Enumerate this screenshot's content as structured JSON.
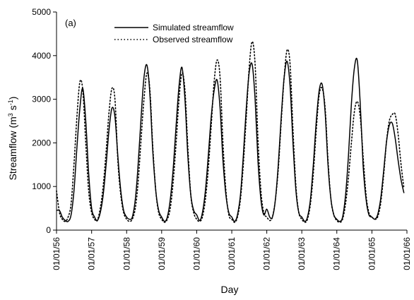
{
  "chart_data": {
    "type": "line",
    "panel_label": "(a)",
    "xlabel": "Day",
    "ylabel_main": "Streamflow (m",
    "ylabel_sup1": "3",
    "ylabel_mid": " s",
    "ylabel_sup2": "-1",
    "ylabel_end": ")",
    "xlim": [
      "1956-01-01",
      "1966-01-01"
    ],
    "ylim": [
      0,
      5000
    ],
    "yticks": [
      0,
      1000,
      2000,
      3000,
      4000,
      5000
    ],
    "xticks": [
      {
        "date": "1956-01-01",
        "label": "01/01/56"
      },
      {
        "date": "1957-01-01",
        "label": "01/01/57"
      },
      {
        "date": "1958-01-01",
        "label": "01/01/58"
      },
      {
        "date": "1959-01-01",
        "label": "01/01/59"
      },
      {
        "date": "1960-01-01",
        "label": "01/01/60"
      },
      {
        "date": "1961-01-01",
        "label": "01/01/61"
      },
      {
        "date": "1962-01-01",
        "label": "01/01/62"
      },
      {
        "date": "1963-01-01",
        "label": "01/01/63"
      },
      {
        "date": "1964-01-01",
        "label": "01/01/64"
      },
      {
        "date": "1965-01-01",
        "label": "01/01/65"
      },
      {
        "date": "1966-01-01",
        "label": "01/01/66"
      }
    ],
    "legend_position": "top-left",
    "series": [
      {
        "name": "Simulated streamflow",
        "style": "solid",
        "color": "#000000",
        "points": [
          [
            "1956-01-01",
            450
          ],
          [
            "1956-02-01",
            450
          ],
          [
            "1956-03-01",
            300
          ],
          [
            "1956-04-01",
            220
          ],
          [
            "1956-05-01",
            200
          ],
          [
            "1956-06-01",
            350
          ],
          [
            "1956-07-01",
            900
          ],
          [
            "1956-08-01",
            1900
          ],
          [
            "1956-09-01",
            2800
          ],
          [
            "1956-10-01",
            3250
          ],
          [
            "1956-11-01",
            2500
          ],
          [
            "1956-12-01",
            1300
          ],
          [
            "1957-01-01",
            500
          ],
          [
            "1957-02-01",
            300
          ],
          [
            "1957-03-01",
            220
          ],
          [
            "1957-04-01",
            400
          ],
          [
            "1957-05-01",
            800
          ],
          [
            "1957-06-01",
            1500
          ],
          [
            "1957-07-01",
            2300
          ],
          [
            "1957-08-01",
            2800
          ],
          [
            "1957-09-01",
            2600
          ],
          [
            "1957-10-01",
            1700
          ],
          [
            "1957-11-01",
            900
          ],
          [
            "1957-12-01",
            450
          ],
          [
            "1958-01-01",
            300
          ],
          [
            "1958-02-01",
            250
          ],
          [
            "1958-03-01",
            300
          ],
          [
            "1958-04-01",
            700
          ],
          [
            "1958-05-01",
            1500
          ],
          [
            "1958-06-01",
            2600
          ],
          [
            "1958-07-01",
            3500
          ],
          [
            "1958-08-01",
            3780
          ],
          [
            "1958-09-01",
            3100
          ],
          [
            "1958-10-01",
            1800
          ],
          [
            "1958-11-01",
            900
          ],
          [
            "1958-12-01",
            450
          ],
          [
            "1959-01-01",
            300
          ],
          [
            "1959-02-01",
            200
          ],
          [
            "1959-03-01",
            300
          ],
          [
            "1959-04-01",
            700
          ],
          [
            "1959-05-01",
            1400
          ],
          [
            "1959-06-01",
            2400
          ],
          [
            "1959-07-01",
            3300
          ],
          [
            "1959-08-01",
            3730
          ],
          [
            "1959-09-01",
            3000
          ],
          [
            "1959-10-01",
            1700
          ],
          [
            "1959-11-01",
            800
          ],
          [
            "1959-12-01",
            450
          ],
          [
            "1960-01-01",
            350
          ],
          [
            "1960-02-01",
            220
          ],
          [
            "1960-03-01",
            400
          ],
          [
            "1960-04-01",
            900
          ],
          [
            "1960-05-01",
            1700
          ],
          [
            "1960-06-01",
            2600
          ],
          [
            "1960-07-01",
            3200
          ],
          [
            "1960-08-01",
            3440
          ],
          [
            "1960-09-01",
            2800
          ],
          [
            "1960-10-01",
            1600
          ],
          [
            "1960-11-01",
            800
          ],
          [
            "1960-12-01",
            400
          ],
          [
            "1961-01-01",
            300
          ],
          [
            "1961-02-01",
            200
          ],
          [
            "1961-03-01",
            350
          ],
          [
            "1961-04-01",
            800
          ],
          [
            "1961-05-01",
            1700
          ],
          [
            "1961-06-01",
            2800
          ],
          [
            "1961-07-01",
            3600
          ],
          [
            "1961-08-01",
            3800
          ],
          [
            "1961-09-01",
            3000
          ],
          [
            "1961-10-01",
            1600
          ],
          [
            "1961-11-01",
            700
          ],
          [
            "1961-12-01",
            350
          ],
          [
            "1962-01-01",
            480
          ],
          [
            "1962-02-01",
            300
          ],
          [
            "1962-03-01",
            300
          ],
          [
            "1962-04-01",
            700
          ],
          [
            "1962-05-01",
            1500
          ],
          [
            "1962-06-01",
            2600
          ],
          [
            "1962-07-01",
            3500
          ],
          [
            "1962-08-01",
            3870
          ],
          [
            "1962-09-01",
            3300
          ],
          [
            "1962-10-01",
            2000
          ],
          [
            "1962-11-01",
            900
          ],
          [
            "1962-12-01",
            400
          ],
          [
            "1963-01-01",
            300
          ],
          [
            "1963-02-01",
            200
          ],
          [
            "1963-03-01",
            300
          ],
          [
            "1963-04-01",
            700
          ],
          [
            "1963-05-01",
            1500
          ],
          [
            "1963-06-01",
            2500
          ],
          [
            "1963-07-01",
            3200
          ],
          [
            "1963-08-01",
            3340
          ],
          [
            "1963-09-01",
            2700
          ],
          [
            "1963-10-01",
            1500
          ],
          [
            "1963-11-01",
            700
          ],
          [
            "1963-12-01",
            350
          ],
          [
            "1964-01-01",
            250
          ],
          [
            "1964-02-01",
            200
          ],
          [
            "1964-03-01",
            300
          ],
          [
            "1964-04-01",
            800
          ],
          [
            "1964-05-01",
            1700
          ],
          [
            "1964-06-01",
            2900
          ],
          [
            "1964-07-01",
            3700
          ],
          [
            "1964-08-01",
            3890
          ],
          [
            "1964-09-01",
            2900
          ],
          [
            "1964-10-01",
            1500
          ],
          [
            "1964-11-01",
            700
          ],
          [
            "1964-12-01",
            350
          ],
          [
            "1965-01-01",
            300
          ],
          [
            "1965-02-01",
            250
          ],
          [
            "1965-03-01",
            350
          ],
          [
            "1965-04-01",
            700
          ],
          [
            "1965-05-01",
            1300
          ],
          [
            "1965-06-01",
            2000
          ],
          [
            "1965-07-01",
            2400
          ],
          [
            "1965-08-01",
            2450
          ],
          [
            "1965-09-01",
            2100
          ],
          [
            "1965-10-01",
            1600
          ],
          [
            "1965-11-01",
            1150
          ],
          [
            "1965-12-01",
            850
          ]
        ]
      },
      {
        "name": "Observed streamflow",
        "style": "dotted",
        "color": "#000000",
        "points": [
          [
            "1956-01-01",
            900
          ],
          [
            "1956-02-01",
            400
          ],
          [
            "1956-03-01",
            250
          ],
          [
            "1956-04-01",
            200
          ],
          [
            "1956-05-01",
            300
          ],
          [
            "1956-06-01",
            600
          ],
          [
            "1956-07-01",
            1500
          ],
          [
            "1956-08-01",
            2600
          ],
          [
            "1956-09-01",
            3400
          ],
          [
            "1956-10-01",
            3200
          ],
          [
            "1956-11-01",
            2000
          ],
          [
            "1956-12-01",
            900
          ],
          [
            "1957-01-01",
            400
          ],
          [
            "1957-02-01",
            250
          ],
          [
            "1957-03-01",
            220
          ],
          [
            "1957-04-01",
            500
          ],
          [
            "1957-05-01",
            1000
          ],
          [
            "1957-06-01",
            1800
          ],
          [
            "1957-07-01",
            2700
          ],
          [
            "1957-08-01",
            3250
          ],
          [
            "1957-09-01",
            3000
          ],
          [
            "1957-10-01",
            1600
          ],
          [
            "1957-11-01",
            800
          ],
          [
            "1957-12-01",
            400
          ],
          [
            "1958-01-01",
            250
          ],
          [
            "1958-02-01",
            200
          ],
          [
            "1958-03-01",
            250
          ],
          [
            "1958-04-01",
            500
          ],
          [
            "1958-05-01",
            1100
          ],
          [
            "1958-06-01",
            2100
          ],
          [
            "1958-07-01",
            3000
          ],
          [
            "1958-08-01",
            3600
          ],
          [
            "1958-09-01",
            3200
          ],
          [
            "1958-10-01",
            1900
          ],
          [
            "1958-11-01",
            900
          ],
          [
            "1958-12-01",
            400
          ],
          [
            "1959-01-01",
            250
          ],
          [
            "1959-02-01",
            180
          ],
          [
            "1959-03-01",
            250
          ],
          [
            "1959-04-01",
            500
          ],
          [
            "1959-05-01",
            1100
          ],
          [
            "1959-06-01",
            2000
          ],
          [
            "1959-07-01",
            3000
          ],
          [
            "1959-08-01",
            3600
          ],
          [
            "1959-09-01",
            3200
          ],
          [
            "1959-10-01",
            1900
          ],
          [
            "1959-11-01",
            800
          ],
          [
            "1959-12-01",
            400
          ],
          [
            "1960-01-01",
            250
          ],
          [
            "1960-02-01",
            200
          ],
          [
            "1960-03-01",
            300
          ],
          [
            "1960-04-01",
            700
          ],
          [
            "1960-05-01",
            1400
          ],
          [
            "1960-06-01",
            2400
          ],
          [
            "1960-07-01",
            3400
          ],
          [
            "1960-08-01",
            3900
          ],
          [
            "1960-09-01",
            3500
          ],
          [
            "1960-10-01",
            2000
          ],
          [
            "1960-11-01",
            900
          ],
          [
            "1960-12-01",
            350
          ],
          [
            "1961-01-01",
            250
          ],
          [
            "1961-02-01",
            180
          ],
          [
            "1961-03-01",
            300
          ],
          [
            "1961-04-01",
            700
          ],
          [
            "1961-05-01",
            1500
          ],
          [
            "1961-06-01",
            2600
          ],
          [
            "1961-07-01",
            3700
          ],
          [
            "1961-08-01",
            4320
          ],
          [
            "1961-09-01",
            3800
          ],
          [
            "1961-10-01",
            2100
          ],
          [
            "1961-11-01",
            900
          ],
          [
            "1961-12-01",
            400
          ],
          [
            "1962-01-01",
            300
          ],
          [
            "1962-02-01",
            220
          ],
          [
            "1962-03-01",
            300
          ],
          [
            "1962-04-01",
            700
          ],
          [
            "1962-05-01",
            1400
          ],
          [
            "1962-06-01",
            2500
          ],
          [
            "1962-07-01",
            3500
          ],
          [
            "1962-08-01",
            4130
          ],
          [
            "1962-09-01",
            3800
          ],
          [
            "1962-10-01",
            2300
          ],
          [
            "1962-11-01",
            1000
          ],
          [
            "1962-12-01",
            400
          ],
          [
            "1963-01-01",
            250
          ],
          [
            "1963-02-01",
            180
          ],
          [
            "1963-03-01",
            250
          ],
          [
            "1963-04-01",
            600
          ],
          [
            "1963-05-01",
            1300
          ],
          [
            "1963-06-01",
            2300
          ],
          [
            "1963-07-01",
            3100
          ],
          [
            "1963-08-01",
            3250
          ],
          [
            "1963-09-01",
            2800
          ],
          [
            "1963-10-01",
            1600
          ],
          [
            "1963-11-01",
            700
          ],
          [
            "1963-12-01",
            350
          ],
          [
            "1964-01-01",
            220
          ],
          [
            "1964-02-01",
            180
          ],
          [
            "1964-03-01",
            250
          ],
          [
            "1964-04-01",
            600
          ],
          [
            "1964-05-01",
            1200
          ],
          [
            "1964-06-01",
            2000
          ],
          [
            "1964-07-01",
            2700
          ],
          [
            "1964-08-01",
            2950
          ],
          [
            "1964-09-01",
            2600
          ],
          [
            "1964-10-01",
            1700
          ],
          [
            "1964-11-01",
            800
          ],
          [
            "1964-12-01",
            400
          ],
          [
            "1965-01-01",
            300
          ],
          [
            "1965-02-01",
            250
          ],
          [
            "1965-03-01",
            300
          ],
          [
            "1965-04-01",
            600
          ],
          [
            "1965-05-01",
            1200
          ],
          [
            "1965-06-01",
            2000
          ],
          [
            "1965-07-01",
            2500
          ],
          [
            "1965-08-01",
            2650
          ],
          [
            "1965-09-01",
            2650
          ],
          [
            "1965-10-01",
            2200
          ],
          [
            "1965-11-01",
            1500
          ],
          [
            "1965-12-01",
            950
          ]
        ]
      }
    ]
  }
}
